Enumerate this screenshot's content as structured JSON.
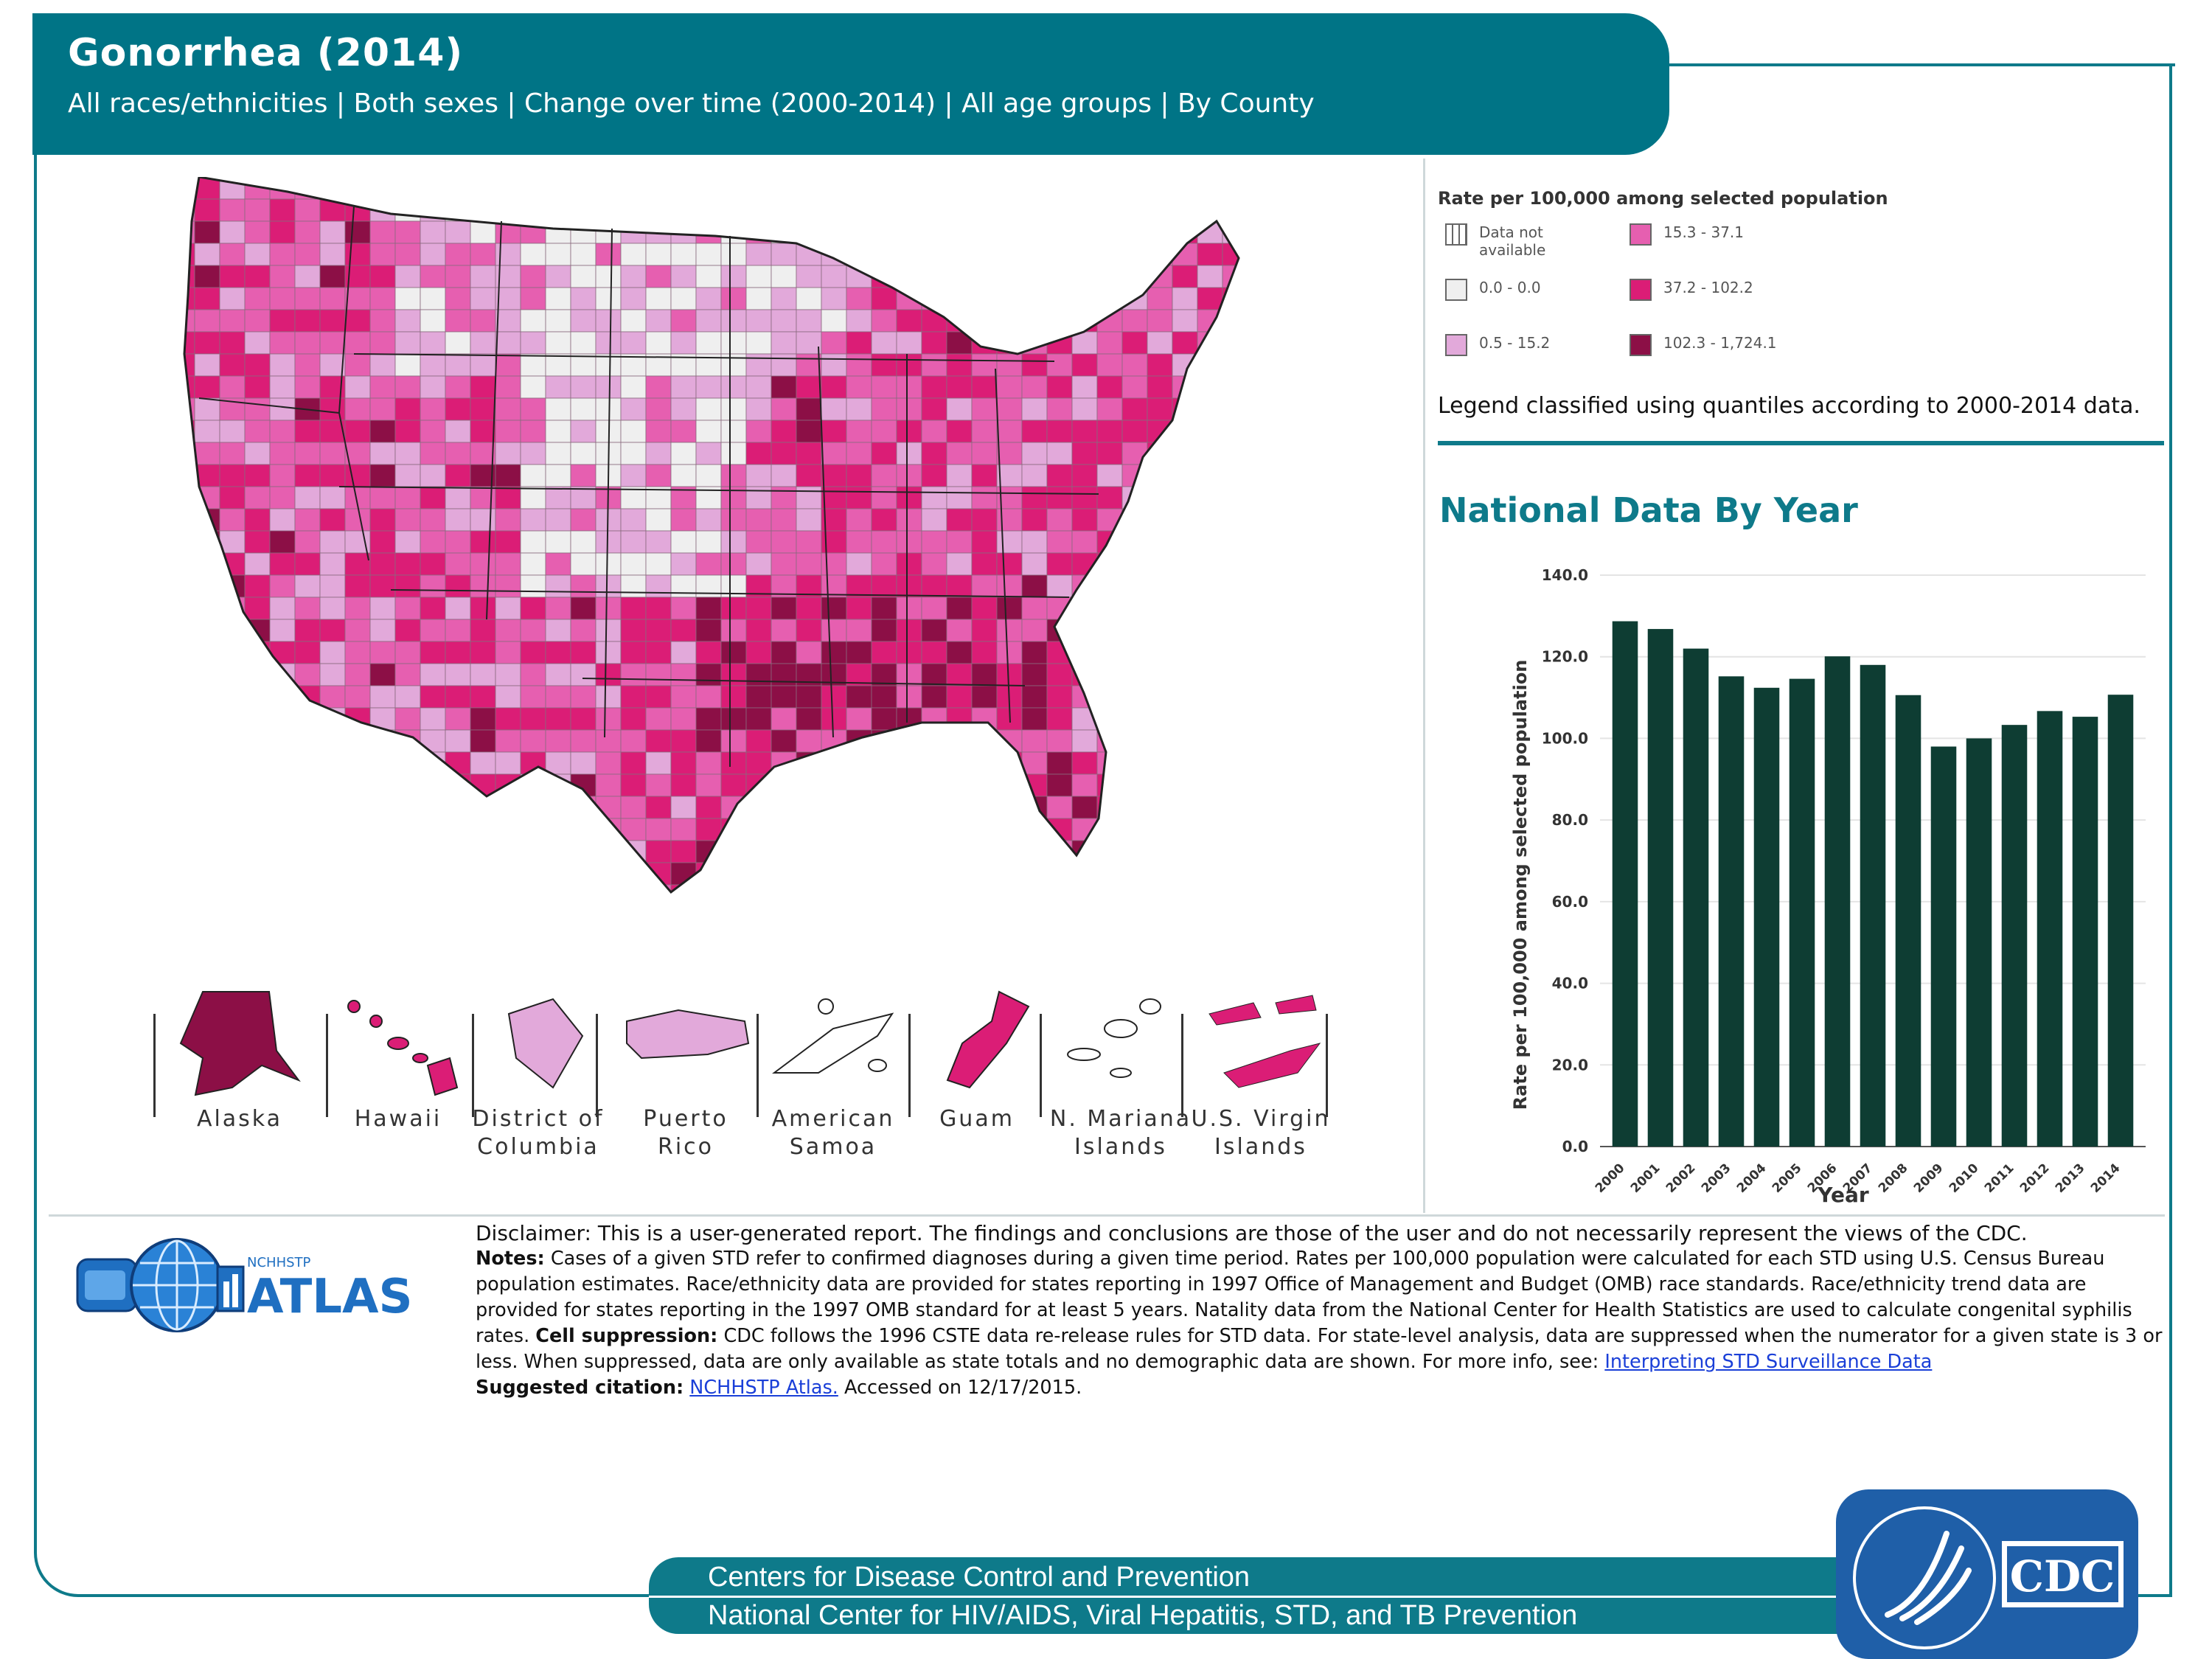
{
  "header": {
    "title": "Gonorrhea (2014)",
    "subtitle": "All races/ethnicities  |  Both sexes  |  Change over time (2000-2014)  |  All age groups  |  By County"
  },
  "colors": {
    "accent": "#007486",
    "bar": "#0e3d33",
    "na": "#ffffff",
    "c0": "#efefef",
    "c1": "#e2a9da",
    "c2": "#e65fb0",
    "c3": "#db1d76",
    "c4": "#8c0f46"
  },
  "map_legend": {
    "title": "Rate per 100,000 among selected population",
    "items": [
      {
        "label": "Data not available",
        "color": "#ffffff"
      },
      {
        "label": "0.0 - 0.0",
        "color": "#efefef"
      },
      {
        "label": "0.5 - 15.2",
        "color": "#e2a9da"
      },
      {
        "label": "15.3 - 37.1",
        "color": "#e65fb0"
      },
      {
        "label": "37.2 - 102.2",
        "color": "#db1d76"
      },
      {
        "label": "102.3 - 1,724.1",
        "color": "#8c0f46"
      }
    ],
    "note": "Legend classified using quantiles according to 2000-2014 data."
  },
  "territories": [
    {
      "name": "Alaska",
      "color": "#8c0f46"
    },
    {
      "name": "Hawaii",
      "color": "#db1d76"
    },
    {
      "name": "District of Columbia",
      "color": "#e2a9da"
    },
    {
      "name": "Puerto Rico",
      "color": "#e2a9da"
    },
    {
      "name": "American Samoa",
      "color": "#ffffff"
    },
    {
      "name": "Guam",
      "color": "#db1d76"
    },
    {
      "name": "N. Mariana Islands",
      "color": "#ffffff"
    },
    {
      "name": "U.S. Virgin Islands",
      "color": "#db1d76"
    }
  ],
  "national_title": "National Data By Year",
  "chart_data": {
    "type": "bar",
    "title": "National Data By Year",
    "xlabel": "Year",
    "ylabel": "Rate per 100,000 among selected population",
    "ylim": [
      0,
      140
    ],
    "yticks": [
      "0.0",
      "20.0",
      "40.0",
      "60.0",
      "80.0",
      "100.0",
      "120.0",
      "140.0"
    ],
    "grid": true,
    "categories": [
      "2000",
      "2001",
      "2002",
      "2003",
      "2004",
      "2005",
      "2006",
      "2007",
      "2008",
      "2009",
      "2010",
      "2011",
      "2012",
      "2013",
      "2014"
    ],
    "values": [
      128.7,
      126.8,
      122.0,
      115.2,
      112.4,
      114.6,
      120.1,
      118.0,
      110.6,
      98.0,
      100.0,
      103.3,
      106.7,
      105.3,
      110.7
    ]
  },
  "atlas": {
    "small": "NCHHSTP",
    "big": "ATLAS"
  },
  "notes": {
    "disclaimer": "Disclaimer: This is a user-generated report. The findings and conclusions are those of the user and do not necessarily represent the views of the CDC.",
    "notes_label": "Notes:",
    "notes_text1": " Cases of a given STD refer to confirmed diagnoses during a given time period. Rates per 100,000 population were calculated for each STD using U.S. Census Bureau population estimates. Race/ethnicity data are provided for states reporting in 1997 Office of Management and Budget (OMB) race standards. Race/ethnicity trend data are provided for states reporting in the 1997 OMB standard for at least 5 years. Natality data from the National Center for Health Statistics are used to calculate congenital syphilis rates. ",
    "suppression_label": "Cell suppression:",
    "notes_text2": " CDC follows the 1996 CSTE data re-release rules for STD data. For state-level analysis, data are suppressed when the numerator for a given state is 3 or less. When suppressed, data are only available as state totals and no demographic data are shown. For more info, see: ",
    "link1": "Interpreting STD Surveillance Data",
    "citation_label": "Suggested citation:",
    "link2": "NCHHSTP Atlas.",
    "accessed": " Accessed on 12/17/2015."
  },
  "footer": {
    "line1": "Centers for Disease Control and Prevention",
    "line2": "National Center for HIV/AIDS, Viral Hepatitis, STD, and TB Prevention",
    "badge": "CDC"
  },
  "icons": {
    "atlas_logo": "globe-icon",
    "cdc_logo": "eagle-icon"
  }
}
